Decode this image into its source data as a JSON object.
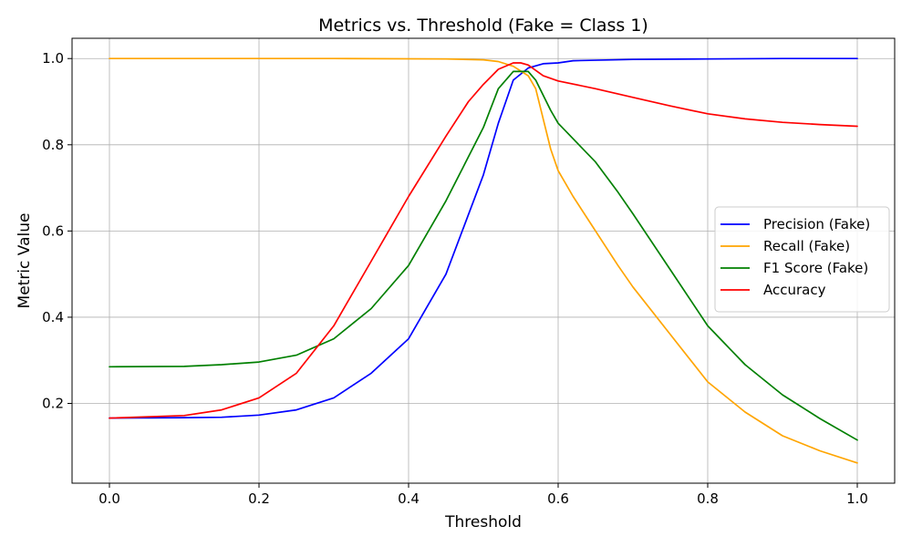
{
  "chart_data": {
    "type": "line",
    "title": "Metrics vs. Threshold (Fake = Class 1)",
    "xlabel": "Threshold",
    "ylabel": "Metric Value",
    "xlim": [
      -0.05,
      1.05
    ],
    "ylim": [
      0.015,
      1.047
    ],
    "xticks": [
      0.0,
      0.2,
      0.4,
      0.6,
      0.8,
      1.0
    ],
    "xtick_labels": [
      "0.0",
      "0.2",
      "0.4",
      "0.6",
      "0.8",
      "1.0"
    ],
    "yticks": [
      0.2,
      0.4,
      0.6,
      0.8,
      1.0
    ],
    "ytick_labels": [
      "0.2",
      "0.4",
      "0.6",
      "0.8",
      "1.0"
    ],
    "grid": true,
    "legend": "center-right",
    "series": [
      {
        "name": "Precision (Fake)",
        "color": "#0000ff",
        "points": [
          [
            0.0,
            0.166
          ],
          [
            0.1,
            0.167
          ],
          [
            0.15,
            0.168
          ],
          [
            0.2,
            0.173
          ],
          [
            0.25,
            0.185
          ],
          [
            0.3,
            0.213
          ],
          [
            0.35,
            0.27
          ],
          [
            0.4,
            0.35
          ],
          [
            0.45,
            0.5
          ],
          [
            0.5,
            0.73
          ],
          [
            0.52,
            0.85
          ],
          [
            0.54,
            0.95
          ],
          [
            0.56,
            0.978
          ],
          [
            0.58,
            0.988
          ],
          [
            0.6,
            0.99
          ],
          [
            0.62,
            0.995
          ],
          [
            0.7,
            0.998
          ],
          [
            0.8,
            0.999
          ],
          [
            0.9,
            1.0
          ],
          [
            1.0,
            1.0
          ]
        ]
      },
      {
        "name": "Recall (Fake)",
        "color": "#ffa500",
        "points": [
          [
            0.0,
            1.0
          ],
          [
            0.3,
            1.0
          ],
          [
            0.45,
            0.999
          ],
          [
            0.5,
            0.997
          ],
          [
            0.52,
            0.993
          ],
          [
            0.54,
            0.982
          ],
          [
            0.56,
            0.96
          ],
          [
            0.57,
            0.93
          ],
          [
            0.58,
            0.86
          ],
          [
            0.59,
            0.79
          ],
          [
            0.6,
            0.74
          ],
          [
            0.62,
            0.68
          ],
          [
            0.65,
            0.6
          ],
          [
            0.68,
            0.52
          ],
          [
            0.7,
            0.47
          ],
          [
            0.75,
            0.36
          ],
          [
            0.8,
            0.25
          ],
          [
            0.85,
            0.18
          ],
          [
            0.9,
            0.125
          ],
          [
            0.95,
            0.09
          ],
          [
            1.0,
            0.062
          ]
        ]
      },
      {
        "name": "F1 Score (Fake)",
        "color": "#008000",
        "points": [
          [
            0.0,
            0.285
          ],
          [
            0.1,
            0.286
          ],
          [
            0.15,
            0.29
          ],
          [
            0.2,
            0.296
          ],
          [
            0.25,
            0.312
          ],
          [
            0.3,
            0.35
          ],
          [
            0.35,
            0.42
          ],
          [
            0.4,
            0.52
          ],
          [
            0.45,
            0.67
          ],
          [
            0.5,
            0.84
          ],
          [
            0.52,
            0.93
          ],
          [
            0.54,
            0.97
          ],
          [
            0.56,
            0.97
          ],
          [
            0.57,
            0.95
          ],
          [
            0.59,
            0.88
          ],
          [
            0.6,
            0.85
          ],
          [
            0.65,
            0.76
          ],
          [
            0.68,
            0.69
          ],
          [
            0.7,
            0.64
          ],
          [
            0.75,
            0.51
          ],
          [
            0.8,
            0.38
          ],
          [
            0.85,
            0.29
          ],
          [
            0.9,
            0.22
          ],
          [
            0.95,
            0.165
          ],
          [
            1.0,
            0.115
          ]
        ]
      },
      {
        "name": "Accuracy",
        "color": "#ff0000",
        "points": [
          [
            0.0,
            0.166
          ],
          [
            0.1,
            0.172
          ],
          [
            0.15,
            0.185
          ],
          [
            0.2,
            0.213
          ],
          [
            0.25,
            0.27
          ],
          [
            0.3,
            0.38
          ],
          [
            0.35,
            0.53
          ],
          [
            0.4,
            0.68
          ],
          [
            0.45,
            0.82
          ],
          [
            0.48,
            0.9
          ],
          [
            0.5,
            0.94
          ],
          [
            0.52,
            0.975
          ],
          [
            0.54,
            0.99
          ],
          [
            0.55,
            0.99
          ],
          [
            0.56,
            0.985
          ],
          [
            0.58,
            0.96
          ],
          [
            0.6,
            0.948
          ],
          [
            0.65,
            0.93
          ],
          [
            0.7,
            0.91
          ],
          [
            0.75,
            0.89
          ],
          [
            0.8,
            0.872
          ],
          [
            0.85,
            0.86
          ],
          [
            0.9,
            0.852
          ],
          [
            0.95,
            0.847
          ],
          [
            1.0,
            0.843
          ]
        ]
      }
    ]
  }
}
